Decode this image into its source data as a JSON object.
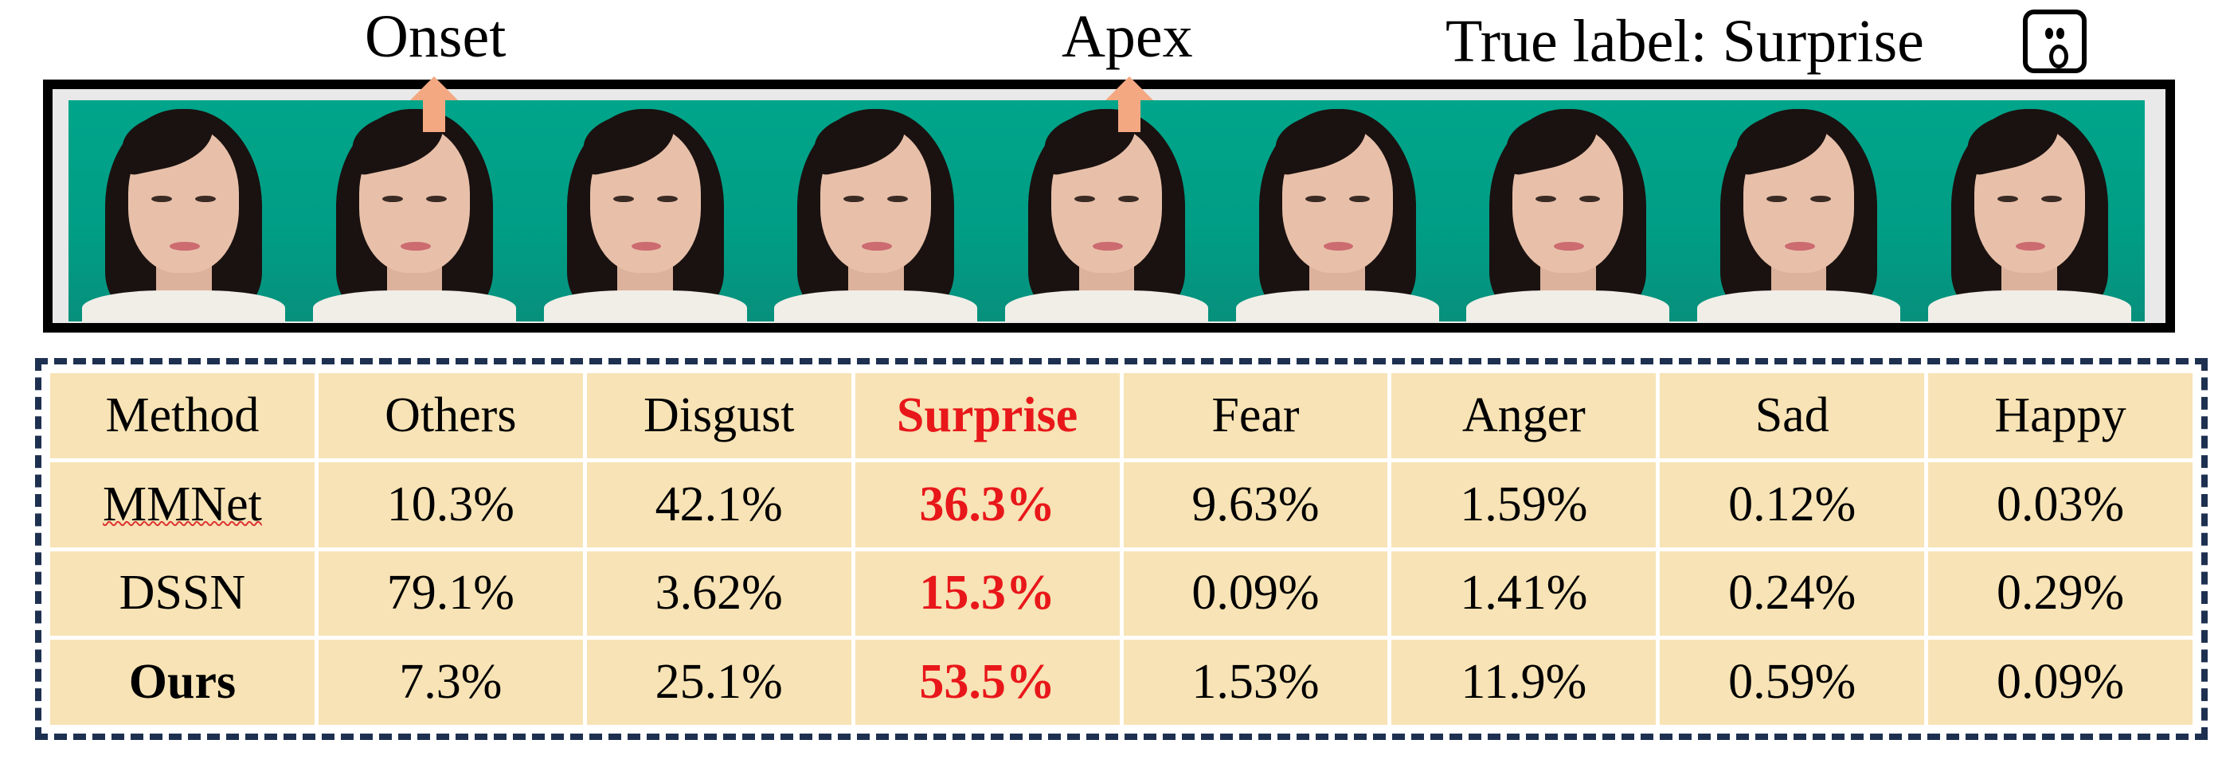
{
  "labels": {
    "onset": "Onset",
    "apex": "Apex",
    "true_label": "True label: Surprise"
  },
  "icons": {
    "emotion": "surprised-face-icon",
    "marker": "up-arrow-icon"
  },
  "colors": {
    "arrow": "#f4a882",
    "highlight": "#e8171a",
    "table_bg": "#f7e3b5",
    "frame_border": "#1e3050",
    "backdrop": "#00a58a"
  },
  "frame_count": 9,
  "table": {
    "headers": [
      "Method",
      "Others",
      "Disgust",
      "Surprise",
      "Fear",
      "Anger",
      "Sad",
      "Happy"
    ],
    "highlight_column": "Surprise",
    "rows": [
      {
        "method": "MMNet",
        "values": [
          "10.3%",
          "42.1%",
          "36.3%",
          "9.63%",
          "1.59%",
          "0.12%",
          "0.03%"
        ]
      },
      {
        "method": "DSSN",
        "values": [
          "79.1%",
          "3.62%",
          "15.3%",
          "0.09%",
          "1.41%",
          "0.24%",
          "0.29%"
        ]
      },
      {
        "method": "Ours",
        "values": [
          "7.3%",
          "25.1%",
          "53.5%",
          "1.53%",
          "11.9%",
          "0.59%",
          "0.09%"
        ]
      }
    ]
  }
}
